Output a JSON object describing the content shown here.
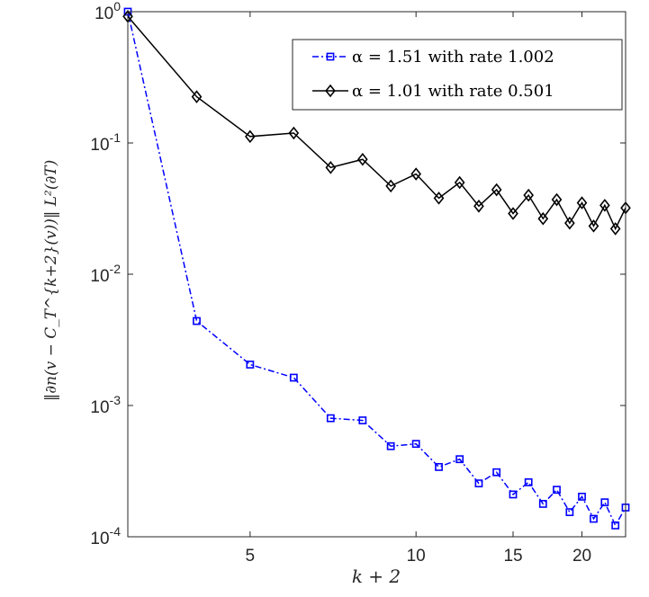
{
  "chart_data": {
    "type": "line",
    "xscale": "log",
    "yscale": "log",
    "xlim": [
      3,
      24
    ],
    "ylim": [
      0.0001,
      1
    ],
    "xlabel": "k + 2",
    "ylabel": "‖∂n(v − C_T^{k+2}(v))‖ L²(∂T)",
    "xticks": [
      5,
      10,
      15,
      20
    ],
    "xtick_labels": [
      "5",
      "10",
      "15",
      "20"
    ],
    "yticks": [
      1,
      0.1,
      0.01,
      0.001,
      0.0001
    ],
    "ytick_labels": [
      {
        "base": "10",
        "exp": "0"
      },
      {
        "base": "10",
        "exp": "-1"
      },
      {
        "base": "10",
        "exp": "-2"
      },
      {
        "base": "10",
        "exp": "-3"
      },
      {
        "base": "10",
        "exp": "-4"
      }
    ],
    "legend_position": "top-right",
    "x": [
      3,
      4,
      5,
      6,
      7,
      8,
      9,
      10,
      11,
      12,
      13,
      14,
      15,
      16,
      17,
      18,
      19,
      20,
      21,
      22,
      23,
      24
    ],
    "series": [
      {
        "name": "α = 1.51 with rate 1.002",
        "legend_label": "α = 1.51 with rate 1.002",
        "color": "#0000ff",
        "line_style": "dashdot",
        "marker": "square",
        "values": [
          1.0,
          0.0044,
          0.00205,
          0.00163,
          0.0008,
          0.00077,
          0.00049,
          0.00051,
          0.00034,
          0.00039,
          0.000255,
          0.00031,
          0.00021,
          0.00026,
          0.000178,
          0.000228,
          0.000154,
          0.000202,
          0.000137,
          0.000183,
          0.000122,
          0.000167
        ]
      },
      {
        "name": "α = 1.01 with rate 0.501",
        "legend_label": "α = 1.01 with rate 0.501",
        "color": "#000000",
        "line_style": "solid",
        "marker": "diamond",
        "values": [
          0.92,
          0.225,
          0.112,
          0.119,
          0.065,
          0.075,
          0.047,
          0.058,
          0.038,
          0.05,
          0.033,
          0.044,
          0.029,
          0.04,
          0.0265,
          0.037,
          0.0245,
          0.035,
          0.0233,
          0.0335,
          0.0222,
          0.032
        ]
      }
    ]
  }
}
